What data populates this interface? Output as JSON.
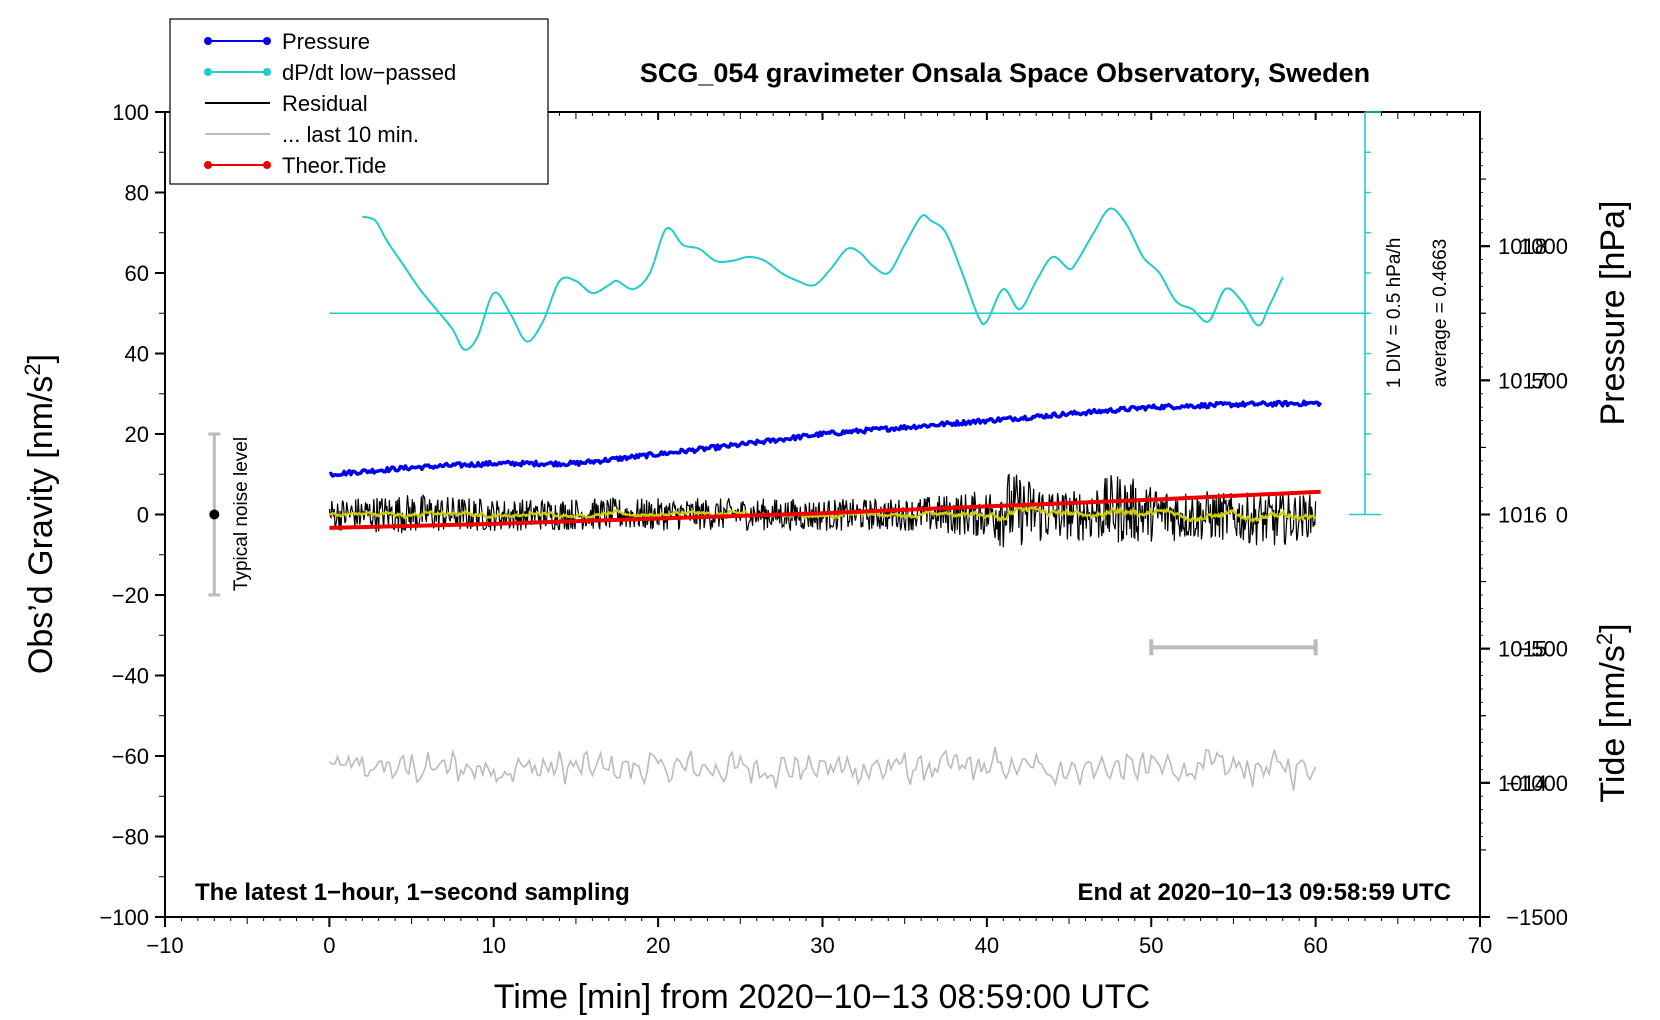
{
  "chart_data": {
    "type": "line",
    "title": "SCG_054 gravimeter Onsala Space Observatory, Sweden",
    "xlabel": "Time [min] from 2020−10−13 08:59:00 UTC",
    "ylabel_left": "Obs'd Gravity [nm/s²]",
    "ylabel_right_pressure": "Pressure [hPa]",
    "ylabel_right_tide": "Tide [nm/s²]",
    "xlim": [
      -10,
      70
    ],
    "ylim_left": [
      -100,
      100
    ],
    "pressure_axis_range": [
      1013,
      1019
    ],
    "tide_axis_range": [
      -1500,
      1500
    ],
    "x_ticks": [
      "−10",
      "0",
      "10",
      "20",
      "30",
      "40",
      "50",
      "60",
      "70"
    ],
    "y_left_ticks": [
      "100",
      "80",
      "60",
      "40",
      "20",
      "0",
      "−20",
      "−40",
      "−60",
      "−80",
      "−100"
    ],
    "pressure_ticks": [
      "1018",
      "1017",
      "1016",
      "1015",
      "1014"
    ],
    "tide_ticks": [
      "1000",
      "500",
      "0",
      "−500",
      "−1000",
      "−1500"
    ],
    "caption_left": "The latest 1−hour, 1−second sampling",
    "caption_right": "End at 2020−10−13 09:58:59 UTC",
    "noise_label": "Typical noise level",
    "noise_range": [
      -20,
      20
    ],
    "noise_x": -7,
    "dpdt_scale_label": "1 DIV = 0.5 hPa/h",
    "dpdt_average_label": "average = 0.4663",
    "dpdt_zero_level": 50,
    "dpdt_scale_x": 63,
    "dpdt_scale_range": [
      0,
      100
    ],
    "last10_bar": {
      "x_start": 50,
      "x_end": 60,
      "y": -33
    },
    "legend": [
      {
        "label": "Pressure",
        "color": "#0000ee",
        "marker": true
      },
      {
        "label": "dP/dt low−passed",
        "color": "#22cccc",
        "marker": true
      },
      {
        "label": "Residual",
        "color": "#000000",
        "marker": false
      },
      {
        "label": "... last 10 min.",
        "color": "#bbbbbb",
        "marker": false
      },
      {
        "label": "Theor.Tide",
        "color": "#ee0000",
        "marker": true
      }
    ],
    "series": [
      {
        "name": "Pressure",
        "color": "#0000ee",
        "axis": "pressure",
        "x": [
          0,
          5,
          10,
          15,
          20,
          25,
          30,
          35,
          40,
          45,
          50,
          55,
          60.3
        ],
        "values": [
          1016.3,
          1016.35,
          1016.38,
          1016.38,
          1016.45,
          1016.52,
          1016.6,
          1016.65,
          1016.7,
          1016.75,
          1016.8,
          1016.82,
          1016.83
        ]
      },
      {
        "name": "dP/dt low-passed",
        "color": "#22cccc",
        "axis": "left",
        "x": [
          2,
          2.8,
          3.5,
          4.5,
          5.5,
          6.5,
          7.5,
          8.2,
          9,
          10,
          11,
          12,
          13,
          14,
          15,
          16,
          17,
          17.5,
          18.5,
          19.5,
          20.5,
          21.5,
          22.5,
          23.5,
          24.5,
          25.5,
          26.5,
          27.5,
          28.5,
          29.5,
          30.5,
          31.5,
          32.3,
          33,
          34,
          35,
          36,
          36.6,
          37.5,
          38.5,
          39.5,
          40,
          41,
          42,
          43,
          44,
          45,
          45.5,
          46.5,
          47.5,
          48.5,
          49.5,
          50.5,
          51.5,
          52.5,
          53.5,
          54.5,
          55.5,
          56.5,
          57.2,
          58
        ],
        "values": [
          74,
          73,
          68,
          62,
          56,
          51,
          46,
          41,
          44,
          55,
          50,
          43,
          48,
          58,
          58,
          55,
          57,
          58,
          56,
          60,
          71,
          67,
          66,
          63,
          63,
          64,
          63,
          60,
          58,
          57,
          61,
          66,
          65,
          62,
          60,
          67,
          74,
          73,
          70,
          60,
          49,
          48,
          56,
          51,
          58,
          64,
          61,
          63,
          70,
          76,
          72,
          64,
          60,
          53,
          51,
          48,
          56,
          53,
          47,
          52,
          59
        ]
      },
      {
        "name": "Residual",
        "color": "#000000",
        "axis": "left",
        "x": [
          0,
          5,
          10,
          15,
          20,
          25,
          30,
          35,
          40,
          41,
          45,
          48,
          50,
          55,
          57.5,
          60
        ],
        "values": [
          0,
          2,
          -1,
          1,
          0,
          1,
          -1,
          0,
          1,
          12,
          -3,
          13,
          2,
          -5,
          -12,
          0
        ],
        "envelope": [
          4,
          5,
          4,
          4,
          4,
          4,
          4,
          4,
          6,
          10,
          6,
          9,
          7,
          6,
          7,
          5
        ]
      },
      {
        "name": "Theor.Tide",
        "color": "#ee0000",
        "axis": "tide",
        "x": [
          0,
          10,
          20,
          30,
          40,
          50,
          60.3
        ],
        "values": [
          -50,
          -35,
          -15,
          5,
          30,
          55,
          85
        ]
      },
      {
        "name": "... last 10 min.",
        "color": "#bbbbbb",
        "axis": "left",
        "x_range": [
          0,
          60
        ],
        "baseline": -63,
        "amplitude": 4
      }
    ]
  }
}
